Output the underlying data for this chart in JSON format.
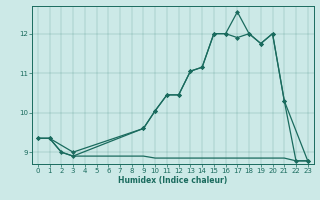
{
  "xlabel": "Humidex (Indice chaleur)",
  "xlim": [
    -0.5,
    23.5
  ],
  "ylim": [
    8.7,
    12.7
  ],
  "yticks": [
    9,
    10,
    11,
    12
  ],
  "xticks": [
    0,
    1,
    2,
    3,
    4,
    5,
    6,
    7,
    8,
    9,
    10,
    11,
    12,
    13,
    14,
    15,
    16,
    17,
    18,
    19,
    20,
    21,
    22,
    23
  ],
  "bg_color": "#cce9e7",
  "line_color": "#1a6b5e",
  "lines": [
    {
      "x": [
        0,
        1,
        2,
        3,
        4,
        5,
        6,
        7,
        8,
        9,
        10,
        11,
        12,
        13,
        14,
        15,
        16,
        17,
        18,
        19,
        20,
        21,
        22,
        23
      ],
      "y": [
        9.35,
        9.35,
        9.0,
        8.9,
        8.9,
        8.9,
        8.9,
        8.9,
        8.9,
        8.9,
        8.85,
        8.85,
        8.85,
        8.85,
        8.85,
        8.85,
        8.85,
        8.85,
        8.85,
        8.85,
        8.85,
        8.85,
        8.78,
        8.78
      ],
      "marker": null,
      "markersize": 0,
      "linewidth": 0.9
    },
    {
      "x": [
        0,
        1,
        3,
        9,
        10,
        11,
        12,
        13,
        14,
        15,
        16,
        17,
        18,
        19,
        20,
        21,
        22,
        23
      ],
      "y": [
        9.35,
        9.35,
        9.0,
        9.6,
        10.05,
        10.45,
        10.45,
        11.05,
        11.15,
        12.0,
        12.0,
        12.55,
        12.0,
        11.75,
        12.0,
        10.3,
        8.78,
        8.78
      ],
      "marker": "D",
      "markersize": 2.0,
      "linewidth": 0.9
    },
    {
      "x": [
        0,
        1,
        2,
        3,
        9,
        10,
        11,
        12,
        13,
        14,
        15,
        16,
        17,
        18,
        19,
        20,
        21,
        23
      ],
      "y": [
        9.35,
        9.35,
        9.0,
        8.9,
        9.6,
        10.05,
        10.45,
        10.45,
        11.05,
        11.15,
        12.0,
        12.0,
        11.9,
        12.0,
        11.75,
        12.0,
        10.3,
        8.78
      ],
      "marker": "D",
      "markersize": 2.0,
      "linewidth": 0.9
    }
  ]
}
